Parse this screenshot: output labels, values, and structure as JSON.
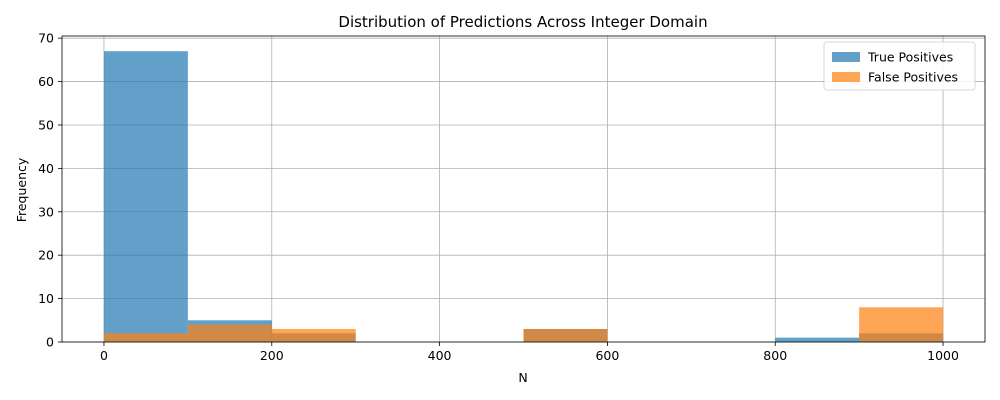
{
  "chart_data": {
    "type": "bar",
    "title": "Distribution of Predictions Across Integer Domain",
    "xlabel": "N",
    "ylabel": "Frequency",
    "xlim": [
      -50,
      1050
    ],
    "ylim": [
      0,
      70.5
    ],
    "xticks": [
      0,
      200,
      400,
      600,
      800,
      1000
    ],
    "yticks": [
      0,
      10,
      20,
      30,
      40,
      50,
      60,
      70
    ],
    "grid": true,
    "legend_position": "top-right",
    "bin_edges": [
      0,
      100,
      200,
      300,
      400,
      500,
      600,
      700,
      800,
      900,
      1000
    ],
    "series": [
      {
        "name": "True Positives",
        "color": "#1f77b4",
        "opacity": 0.7,
        "values": [
          67,
          5,
          2,
          0,
          0,
          3,
          0,
          0,
          1,
          2
        ]
      },
      {
        "name": "False Positives",
        "color": "#ff7f0e",
        "opacity": 0.7,
        "values": [
          2,
          4,
          3,
          0,
          0,
          3,
          0,
          0,
          0,
          8
        ]
      }
    ]
  }
}
